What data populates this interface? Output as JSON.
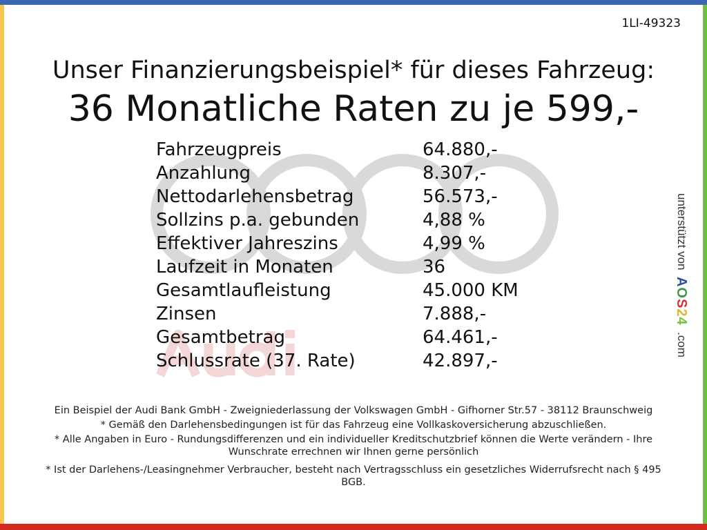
{
  "reference": "1LI-49323",
  "headline": "Unser Finanzierungsbeispiel* für dieses Fahrzeug:",
  "subheadline": "36 Monatliche Raten zu je 599,-",
  "watermark": {
    "brand": "Audi",
    "ring_color": "#d9d9d9",
    "text_color": "#f3d6d6"
  },
  "borders": {
    "top": "#3a67b4",
    "left": "#f7c54e",
    "right": "#6fbf45",
    "bottom": "#d22a1f"
  },
  "rows": [
    {
      "label": "Fahrzeugpreis",
      "value": "64.880,-"
    },
    {
      "label": "Anzahlung",
      "value": "8.307,-"
    },
    {
      "label": "Nettodarlehensbetrag",
      "value": "56.573,-"
    },
    {
      "label": "Sollzins p.a. gebunden",
      "value": "4,88 %"
    },
    {
      "label": "Effektiver Jahreszins",
      "value": "4,99 %"
    },
    {
      "label": "Laufzeit in Monaten",
      "value": "36"
    },
    {
      "label": "Gesamtlaufleistung",
      "value": "45.000 KM"
    },
    {
      "label": "Zinsen",
      "value": "7.888,-"
    },
    {
      "label": "Gesamtbetrag",
      "value": "64.461,-"
    },
    {
      "label": "Schlussrate (37. Rate)",
      "value": "42.897,-"
    }
  ],
  "side": {
    "prefix": "unterstützt von",
    "logo": "AOS24",
    "suffix": ".com"
  },
  "footer": [
    "Ein Beispiel der Audi Bank GmbH - Zweigniederlassung der Volkswagen GmbH - Gifhorner Str.57 - 38112 Braunschweig",
    "* Gemäß den Darlehensbedingungen ist für das Fahrzeug eine Vollkaskoversicherung abzuschließen.",
    "* Alle Angaben in Euro - Rundungsdifferenzen und ein individueller Kreditschutzbrief können die Werte verändern - Ihre Wunschrate errechnen wir Ihnen gerne persönlich",
    "* Ist der Darlehens-/Leasingnehmer Verbraucher, besteht nach Vertragsschluss ein gesetzliches Widerrufsrecht nach § 495 BGB."
  ]
}
